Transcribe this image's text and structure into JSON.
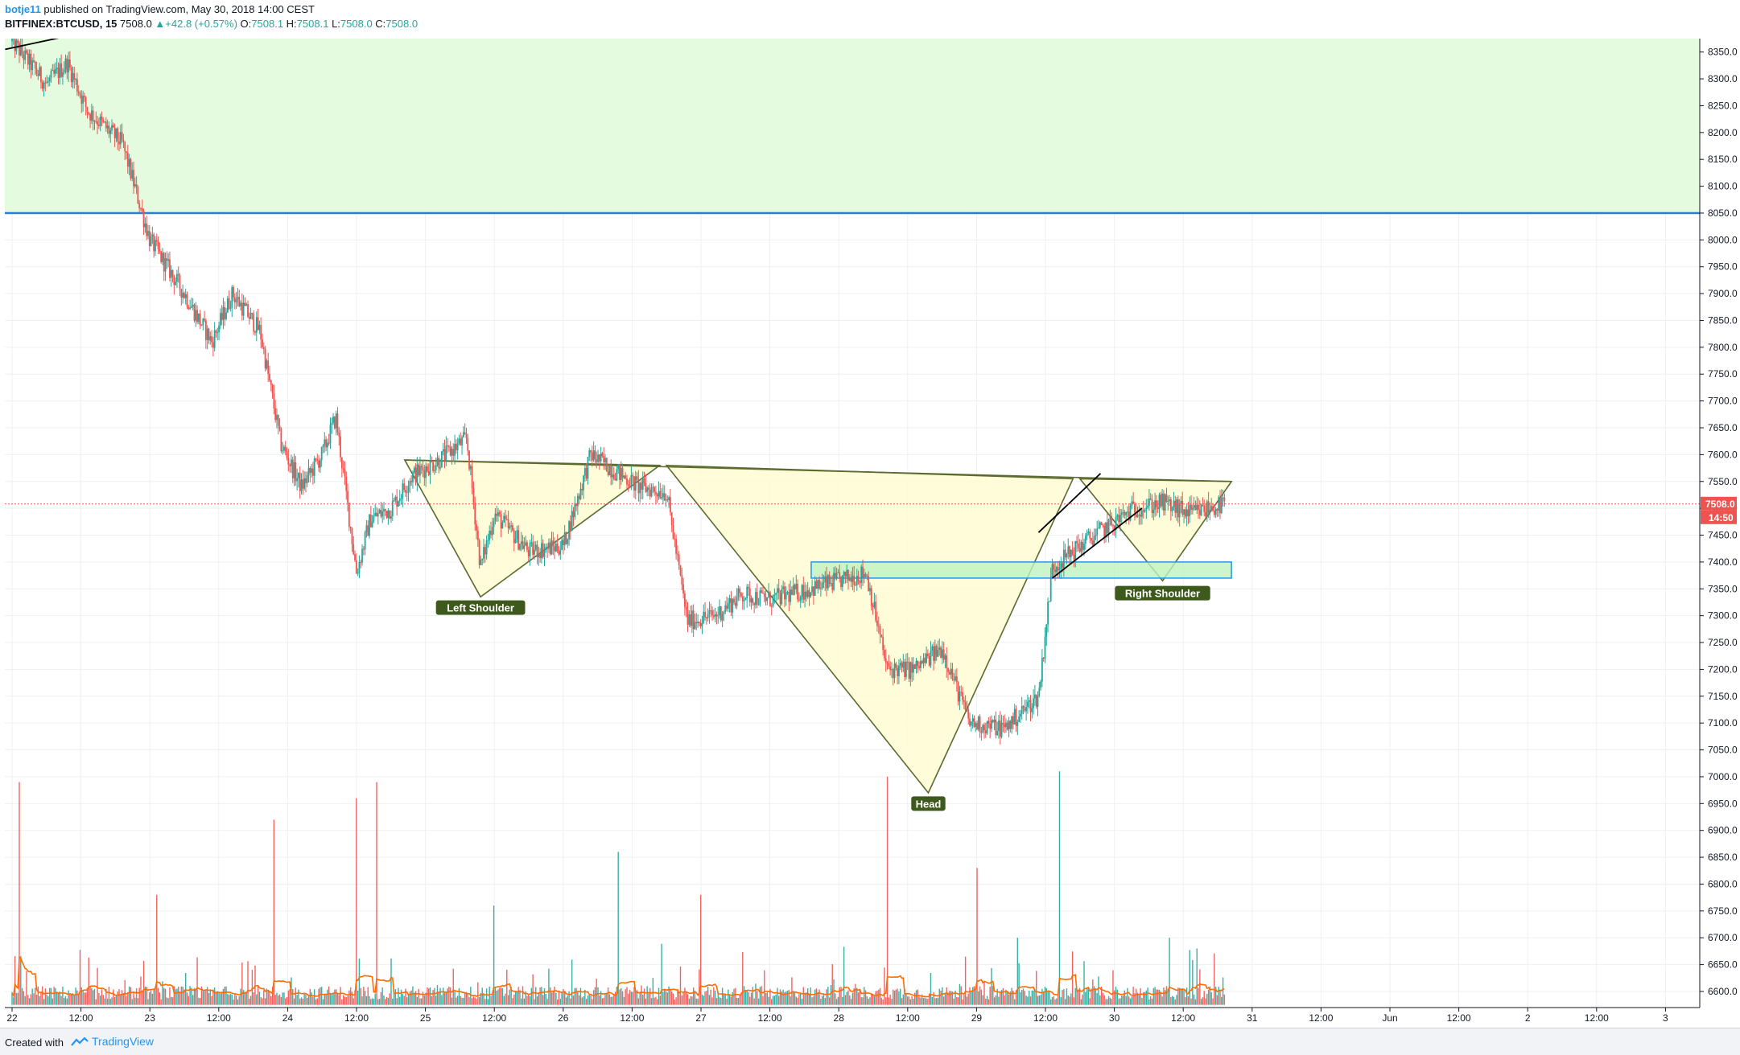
{
  "header": {
    "author": "botje11",
    "published": "published on TradingView.com, May 30, 2018 14:00 CEST",
    "symbol": "BITFINEX:BTCUSD, 15",
    "last": "7508.0",
    "arrow": "▲",
    "change": "+42.8 (+0.57%)",
    "o_label": "O:",
    "o_value": "7508.1",
    "h_label": "H:",
    "h_value": "7508.1",
    "l_label": "L:",
    "l_value": "7508.0",
    "c_label": "C:",
    "c_value": "7508.0"
  },
  "footer": {
    "created": "Created with",
    "brand": "TradingView"
  },
  "colors": {
    "up": "#26a69a",
    "down": "#ef5350",
    "zone_fill": "#e4fbe0",
    "zone_line": "#2f7bd6",
    "pattern_fill": "#fffbd2",
    "pattern_line": "#5a6b2f",
    "neckline_box": "#bff2bf",
    "label_bg": "#3d5a1c",
    "price_line": "#ef5350",
    "volume_ma": "#ff6d00"
  },
  "chart_data": {
    "type": "candlestick",
    "symbol": "BITFINEX:BTCUSD",
    "interval": "15",
    "ylim": [
      6570,
      8375
    ],
    "y_ticks": [
      6600,
      6650,
      6700,
      6750,
      6800,
      6850,
      6900,
      6950,
      7000,
      7050,
      7100,
      7150,
      7200,
      7250,
      7300,
      7350,
      7400,
      7450,
      7500,
      7550,
      7600,
      7650,
      7700,
      7750,
      7800,
      7850,
      7900,
      7950,
      8000,
      8050,
      8100,
      8150,
      8200,
      8250,
      8300,
      8350
    ],
    "x_ticks": [
      "22",
      "12:00",
      "23",
      "12:00",
      "24",
      "12:00",
      "25",
      "12:00",
      "26",
      "12:00",
      "27",
      "12:00",
      "28",
      "12:00",
      "29",
      "12:00",
      "30",
      "12:00",
      "31",
      "12:00",
      "Jun",
      "12:00",
      "2",
      "12:00",
      "3"
    ],
    "last_price": 7508.0,
    "last_price_label": "7508.0",
    "countdown_label": "14:50",
    "resistance_zone": {
      "low": 8050,
      "high": 8385
    },
    "price_path": [
      [
        0,
        8370
      ],
      [
        0.25,
        8290
      ],
      [
        0.4,
        8330
      ],
      [
        0.55,
        8240
      ],
      [
        0.8,
        8180
      ],
      [
        1.0,
        8000
      ],
      [
        1.25,
        7900
      ],
      [
        1.45,
        7810
      ],
      [
        1.6,
        7900
      ],
      [
        1.8,
        7830
      ],
      [
        1.95,
        7620
      ],
      [
        2.1,
        7540
      ],
      [
        2.25,
        7600
      ],
      [
        2.35,
        7670
      ],
      [
        2.5,
        7380
      ],
      [
        2.6,
        7480
      ],
      [
        2.75,
        7500
      ],
      [
        2.9,
        7560
      ],
      [
        3.1,
        7590
      ],
      [
        3.3,
        7630
      ],
      [
        3.4,
        7390
      ],
      [
        3.5,
        7490
      ],
      [
        3.75,
        7420
      ],
      [
        4.0,
        7430
      ],
      [
        4.2,
        7600
      ],
      [
        4.55,
        7540
      ],
      [
        4.75,
        7530
      ],
      [
        4.9,
        7290
      ],
      [
        5.1,
        7300
      ],
      [
        5.3,
        7340
      ],
      [
        5.5,
        7330
      ],
      [
        5.8,
        7350
      ],
      [
        6.2,
        7380
      ],
      [
        6.35,
        7200
      ],
      [
        6.55,
        7200
      ],
      [
        6.75,
        7240
      ],
      [
        6.95,
        7100
      ],
      [
        7.2,
        7090
      ],
      [
        7.45,
        7150
      ],
      [
        7.55,
        7390
      ],
      [
        7.8,
        7440
      ],
      [
        8.15,
        7500
      ],
      [
        8.35,
        7510
      ],
      [
        8.55,
        7490
      ],
      [
        8.8,
        7508
      ]
    ],
    "trend_lines": [
      {
        "points": [
          [
            -0.05,
            8355
          ],
          [
            0.5,
            8385
          ]
        ],
        "color": "#000000"
      },
      {
        "points": [
          [
            7.45,
            7455
          ],
          [
            7.9,
            7565
          ]
        ],
        "color": "#000000"
      },
      {
        "points": [
          [
            7.55,
            7370
          ],
          [
            8.2,
            7500
          ]
        ],
        "color": "#000000"
      }
    ],
    "patterns": [
      {
        "name": "left-shoulder-triangle",
        "points": [
          [
            2.85,
            7590
          ],
          [
            3.4,
            7335
          ],
          [
            4.7,
            7580
          ]
        ]
      },
      {
        "name": "head-triangle",
        "points": [
          [
            4.75,
            7580
          ],
          [
            6.65,
            6970
          ],
          [
            7.7,
            7555
          ]
        ]
      },
      {
        "name": "right-shoulder-triangle",
        "points": [
          [
            7.75,
            7555
          ],
          [
            8.35,
            7365
          ],
          [
            8.85,
            7550
          ]
        ]
      },
      {
        "name": "neckline-area",
        "points": [
          [
            2.85,
            7590
          ],
          [
            8.85,
            7550
          ],
          [
            8.85,
            7550
          ]
        ]
      }
    ],
    "neckline_box": {
      "x0": 5.8,
      "x1": 8.85,
      "low": 7370,
      "high": 7400
    },
    "annotations": [
      {
        "text": "Left Shoulder",
        "x": 3.4,
        "y": 7315
      },
      {
        "text": "Head",
        "x": 6.65,
        "y": 6950
      },
      {
        "text": "Right Shoulder",
        "x": 8.35,
        "y": 7342
      }
    ],
    "volume_peaks": [
      [
        0.05,
        6990
      ],
      [
        1.05,
        6780
      ],
      [
        1.9,
        6920
      ],
      [
        2.5,
        6960
      ],
      [
        2.65,
        6990
      ],
      [
        3.5,
        6760
      ],
      [
        4.4,
        6860
      ],
      [
        5.0,
        6780
      ],
      [
        6.35,
        7000
      ],
      [
        7.0,
        6830
      ],
      [
        7.6,
        7010
      ],
      [
        7.3,
        6700
      ],
      [
        8.4,
        6700
      ],
      [
        8.6,
        6680
      ]
    ]
  }
}
